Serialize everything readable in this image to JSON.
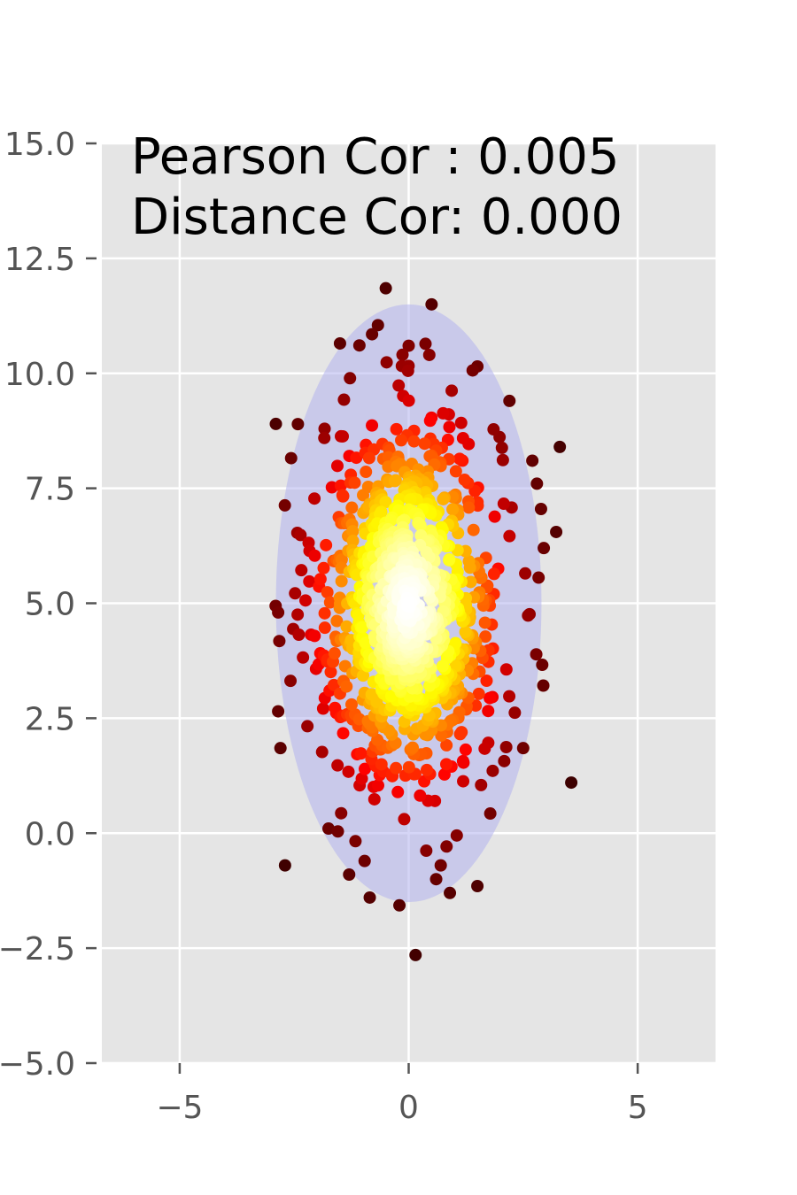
{
  "chart_data": {
    "type": "scatter",
    "title": "",
    "xlabel": "",
    "ylabel": "",
    "xlim": [
      -6.7,
      6.7
    ],
    "ylim": [
      -5.0,
      15.0
    ],
    "x_ticks": [
      -5,
      0,
      5
    ],
    "x_tick_labels": [
      "−5",
      "0",
      "5"
    ],
    "y_ticks": [
      -5.0,
      -2.5,
      0.0,
      2.5,
      5.0,
      7.5,
      10.0,
      12.5,
      15.0
    ],
    "y_tick_labels": [
      "−5.0",
      "−2.5",
      "0.0",
      "2.5",
      "5.0",
      "7.5",
      "10.0",
      "12.5",
      "15.0"
    ],
    "grid": true,
    "background_color": "#e5e5e5",
    "grid_color": "#ffffff",
    "annotation_lines": [
      "Pearson Cor : 0.005",
      "Distance Cor: 0.000"
    ],
    "colormap": "hot (dark red at low density → red → orange → yellow → near-white at high density)",
    "ellipse": {
      "center": [
        0.0,
        5.0
      ],
      "half_width": 2.9,
      "half_height": 6.5,
      "color": "#b3b3ee",
      "opacity": 0.55
    },
    "points": {
      "count": 1000,
      "x_mean": 0.0,
      "x_std": 1.0,
      "y_mean": 5.0,
      "y_std": 2.0,
      "pearson_correlation": 0.005,
      "outliers": [
        [
          -0.5,
          11.85
        ],
        [
          0.5,
          11.5
        ],
        [
          -1.5,
          10.65
        ],
        [
          -0.8,
          10.85
        ],
        [
          0.0,
          10.6
        ],
        [
          0.45,
          10.4
        ],
        [
          1.5,
          10.15
        ],
        [
          -2.9,
          8.9
        ],
        [
          2.2,
          9.4
        ],
        [
          3.3,
          8.4
        ],
        [
          2.7,
          8.1
        ],
        [
          2.8,
          7.6
        ],
        [
          2.95,
          6.2
        ],
        [
          -2.85,
          4.8
        ],
        [
          -2.85,
          2.65
        ],
        [
          -2.8,
          1.85
        ],
        [
          3.55,
          1.1
        ],
        [
          2.5,
          1.85
        ],
        [
          -2.7,
          -0.7
        ],
        [
          -1.3,
          -0.9
        ],
        [
          -0.85,
          -1.4
        ],
        [
          0.9,
          -1.3
        ],
        [
          1.5,
          -1.15
        ],
        [
          0.6,
          -1.0
        ],
        [
          0.7,
          -0.7
        ],
        [
          0.15,
          -2.65
        ],
        [
          -1.75,
          0.1
        ],
        [
          1.05,
          -0.05
        ]
      ]
    }
  }
}
